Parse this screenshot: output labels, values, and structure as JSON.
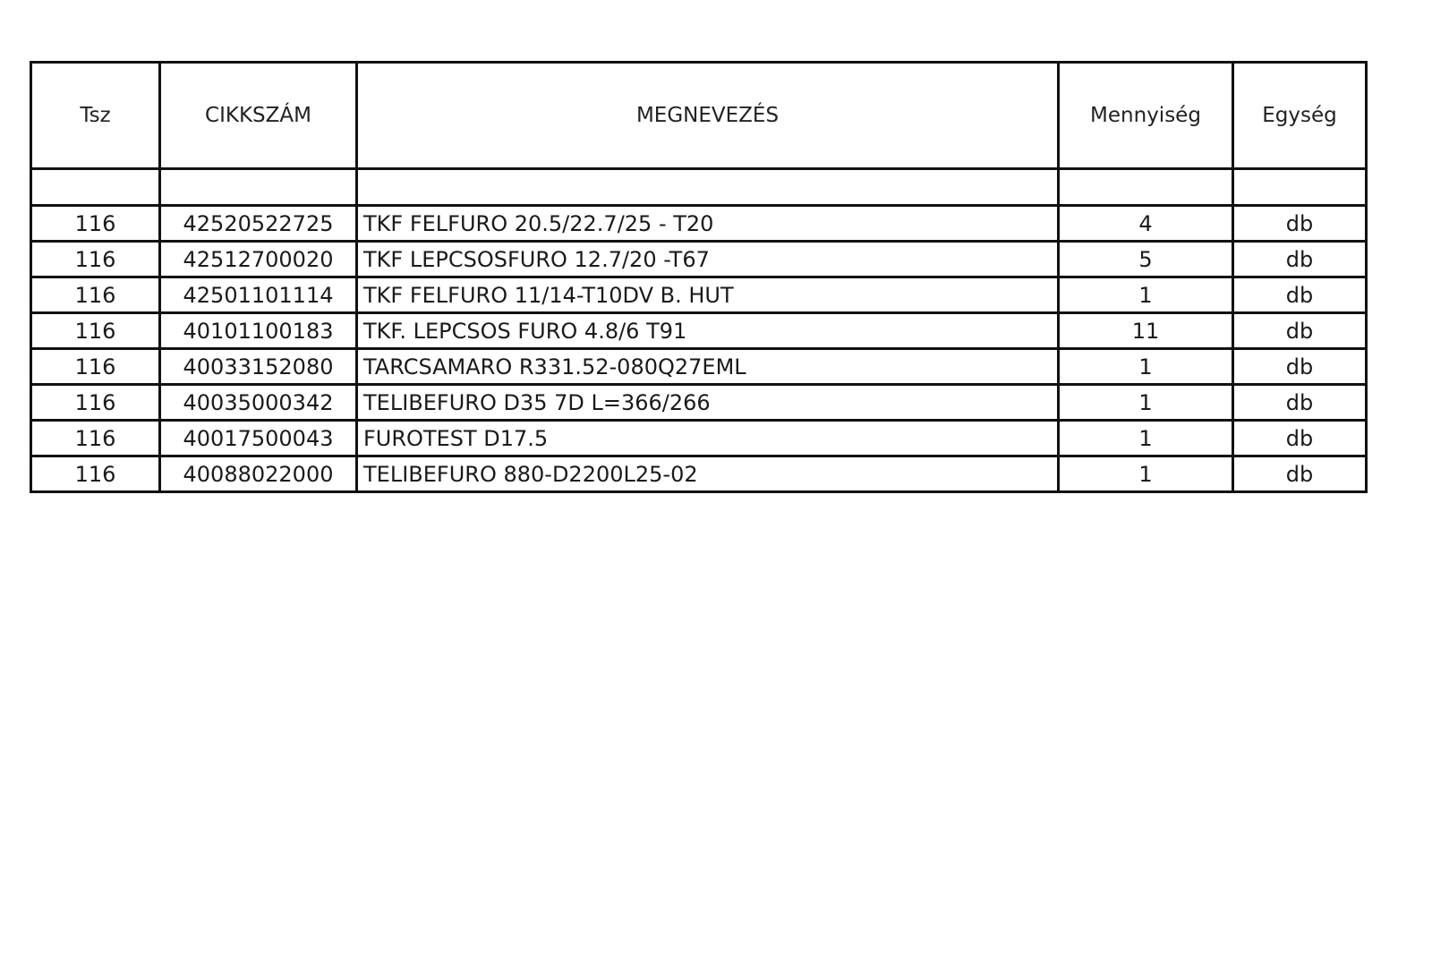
{
  "table": {
    "headers": [
      "Tsz",
      "CIKKSZÁM",
      "MEGNEVEZÉS",
      "Mennyiség",
      "Egység"
    ],
    "rows": [
      [
        "116",
        "42520522725",
        "TKF FELFURO 20.5/22.7/25 - T20",
        "4",
        "db"
      ],
      [
        "116",
        "42512700020",
        "TKF LEPCSOSFURO 12.7/20 -T67",
        "5",
        "db"
      ],
      [
        "116",
        "42501101114",
        "TKF FELFURO 11/14-T10DV B. HUT",
        "1",
        "db"
      ],
      [
        "116",
        "40101100183",
        "TKF. LEPCSOS FURO 4.8/6 T91",
        "11",
        "db"
      ],
      [
        "116",
        "40033152080",
        "TARCSAMARO R331.52-080Q27EML",
        "1",
        "db"
      ],
      [
        "116",
        "40035000342",
        "TELIBEFURO D35 7D L=366/266",
        "1",
        "db"
      ],
      [
        "116",
        "40017500043",
        "FUROTEST D17.5",
        "1",
        "db"
      ],
      [
        "116",
        "40088022000",
        "TELIBEFURO 880-D2200L25-02",
        "1",
        "db"
      ]
    ]
  }
}
